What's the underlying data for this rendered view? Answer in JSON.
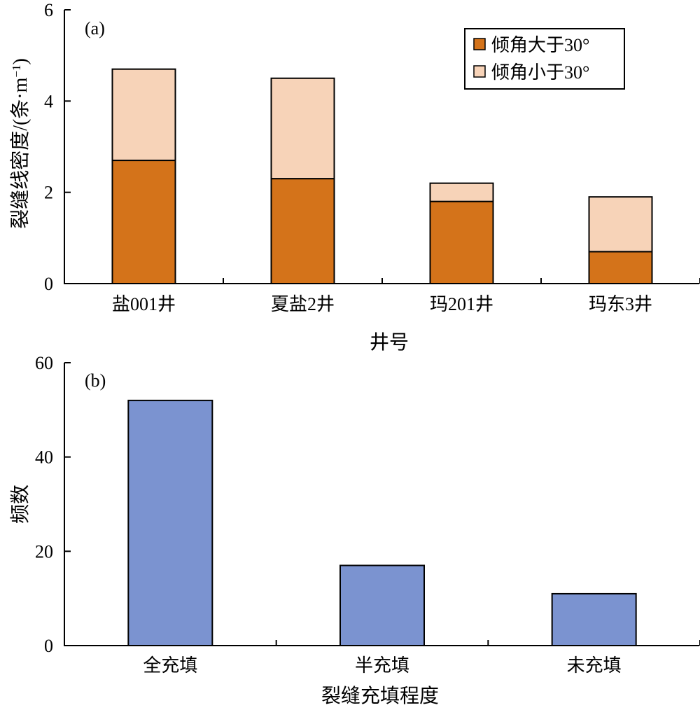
{
  "chart_data": [
    {
      "type": "bar",
      "stacked": true,
      "panel_label": "(a)",
      "categories": [
        "盐001井",
        "夏盐2井",
        "玛201井",
        "玛东3井"
      ],
      "series": [
        {
          "name": "倾角大于30°",
          "color": "#d4731a",
          "values": [
            2.7,
            2.3,
            1.8,
            0.7
          ]
        },
        {
          "name": "倾角小于30°",
          "color": "#f7d3b8",
          "values": [
            2.0,
            2.2,
            0.4,
            1.2
          ]
        }
      ],
      "xlabel": "井号",
      "ylabel_main": "裂缝线密度/(条·m",
      "ylabel_sup": "−1",
      "ylabel_close": ")",
      "ylim": [
        0,
        6
      ],
      "yticks": [
        0,
        2,
        4,
        6
      ],
      "legend_position": "top-right",
      "grid": false
    },
    {
      "type": "bar",
      "panel_label": "(b)",
      "categories": [
        "全充填",
        "半充填",
        "未充填"
      ],
      "values": [
        52,
        17,
        11
      ],
      "color": "#7b93d0",
      "xlabel": "裂缝充填程度",
      "ylabel": "频数",
      "ylim": [
        0,
        60
      ],
      "yticks": [
        0,
        20,
        40,
        60
      ],
      "grid": false
    }
  ]
}
